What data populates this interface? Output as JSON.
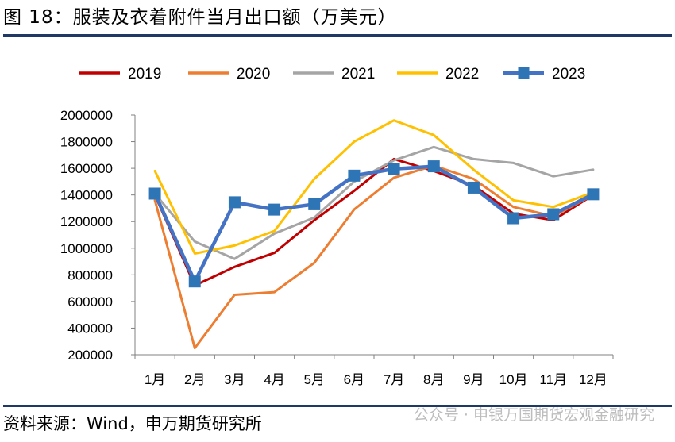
{
  "header": {
    "title": "图 18：服装及衣着附件当月出口额（万美元）"
  },
  "footer": {
    "source": "资料来源：Wind，申万期货研究所",
    "watermark": "公众号 · 申银万国期货宏观金融研究"
  },
  "chart_data": {
    "type": "line",
    "title": "",
    "xlabel": "",
    "ylabel": "",
    "categories": [
      "1月",
      "2月",
      "3月",
      "4月",
      "5月",
      "6月",
      "7月",
      "8月",
      "9月",
      "10月",
      "11月",
      "12月"
    ],
    "ylim": [
      200000,
      2000000
    ],
    "yticks": [
      200000,
      400000,
      600000,
      800000,
      1000000,
      1200000,
      1400000,
      1600000,
      1800000,
      2000000
    ],
    "grid": false,
    "legend_position": "top",
    "series": [
      {
        "name": "2019",
        "color": "#c00000",
        "markers": false,
        "values": [
          1400000,
          720000,
          860000,
          965000,
          1210000,
          1430000,
          1670000,
          1580000,
          1470000,
          1260000,
          1210000,
          1400000
        ]
      },
      {
        "name": "2020",
        "color": "#ed7d31",
        "markers": false,
        "values": [
          1360000,
          250000,
          650000,
          670000,
          890000,
          1290000,
          1530000,
          1620000,
          1520000,
          1310000,
          1240000,
          1400000
        ]
      },
      {
        "name": "2021",
        "color": "#a5a5a5",
        "markers": false,
        "values": [
          1410000,
          1050000,
          920000,
          1110000,
          1230000,
          1500000,
          1660000,
          1760000,
          1670000,
          1640000,
          1540000,
          1590000
        ]
      },
      {
        "name": "2022",
        "color": "#ffc000",
        "markers": false,
        "values": [
          1580000,
          960000,
          1020000,
          1130000,
          1520000,
          1800000,
          1960000,
          1850000,
          1590000,
          1360000,
          1310000,
          1420000
        ]
      },
      {
        "name": "2023",
        "color": "#4472c4",
        "markers": true,
        "values": [
          1410000,
          750000,
          1345000,
          1290000,
          1330000,
          1545000,
          1595000,
          1615000,
          1455000,
          1225000,
          1255000,
          1405000
        ]
      }
    ]
  }
}
